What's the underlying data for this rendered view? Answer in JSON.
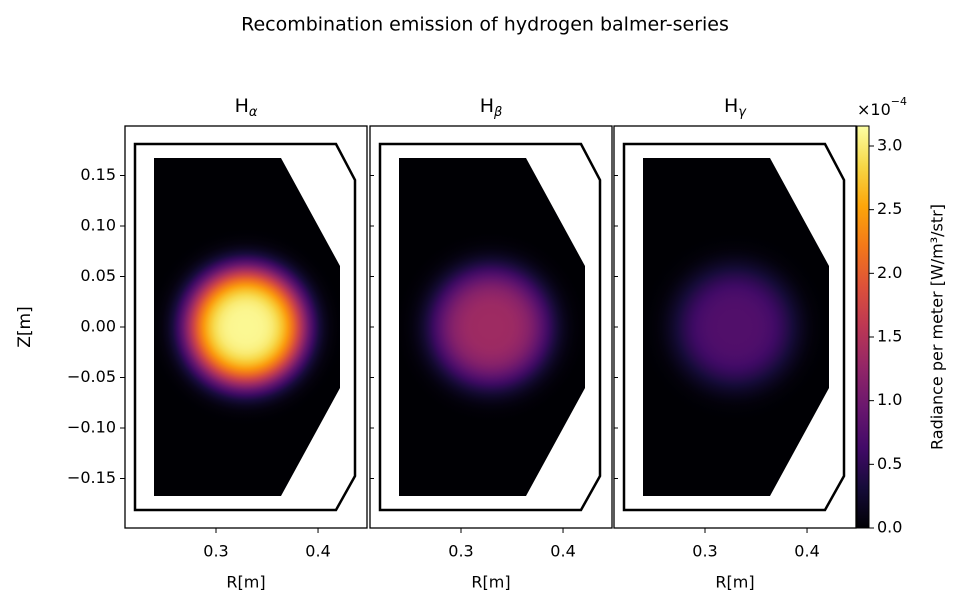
{
  "chart_data": {
    "type": "heatmap",
    "title": "Recombination emission of hydrogen balmer-series",
    "panels": [
      {
        "title": {
          "base": "H",
          "subscript": "α"
        },
        "peak": 3.1
      },
      {
        "title": {
          "base": "H",
          "subscript": "β"
        },
        "peak": 1.35
      },
      {
        "title": {
          "base": "H",
          "subscript": "γ"
        },
        "peak": 0.75
      }
    ],
    "xlabel": "R[m]",
    "ylabel": "Z[m]",
    "xlim": [
      0.2108,
      0.448
    ],
    "ylim": [
      -0.199,
      0.199
    ],
    "xticks": [
      0.3,
      0.4
    ],
    "yticks": [
      {
        "value": -0.15,
        "label": "−0.15"
      },
      {
        "value": -0.1,
        "label": "−0.10"
      },
      {
        "value": -0.05,
        "label": "−0.05"
      },
      {
        "value": 0,
        "label": "0.00"
      },
      {
        "value": 0.05,
        "label": "0.05"
      },
      {
        "value": 0.1,
        "label": "0.10"
      },
      {
        "value": 0.15,
        "label": "0.15"
      }
    ],
    "colorbar": {
      "label": "Radiance per meter [W/m³/str]",
      "offset": {
        "base": "×10",
        "exponent": "−4"
      },
      "lim": [
        0,
        3.157
      ],
      "ticks": [
        {
          "value": 0,
          "label": "0.0"
        },
        {
          "value": 0.5,
          "label": "0.5"
        },
        {
          "value": 1,
          "label": "1.0"
        },
        {
          "value": 1.5,
          "label": "1.5"
        },
        {
          "value": 2,
          "label": "2.0"
        },
        {
          "value": 2.5,
          "label": "2.5"
        },
        {
          "value": 3,
          "label": "3.0"
        }
      ]
    },
    "colormap": [
      "#000004",
      "#160b39",
      "#420a68",
      "#6a176e",
      "#932667",
      "#bc3754",
      "#dd513a",
      "#f37819",
      "#fca50a",
      "#f6d746",
      "#fcffa4"
    ]
  }
}
